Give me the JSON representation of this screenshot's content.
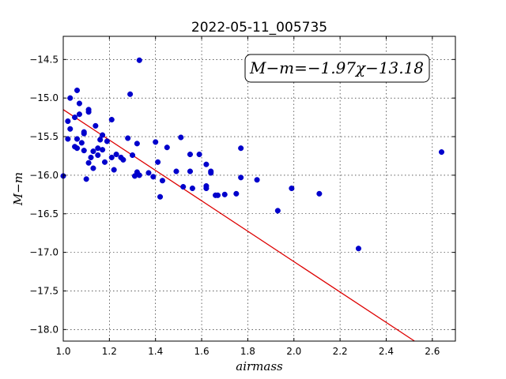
{
  "chart_data": {
    "type": "scatter",
    "title": "2022-05-11_005735",
    "xlabel": "airmass",
    "ylabel": "M−m",
    "annotation": "M−m=−1.97χ−13.18",
    "xlim": [
      1.0,
      2.7
    ],
    "ylim": [
      -18.15,
      -14.2
    ],
    "xticks": [
      1.0,
      1.2,
      1.4,
      1.6,
      1.8,
      2.0,
      2.2,
      2.4,
      2.6
    ],
    "xtick_labels": [
      "1.0",
      "1.2",
      "1.4",
      "1.6",
      "1.8",
      "2.0",
      "2.2",
      "2.4",
      "2.6"
    ],
    "yticks": [
      -14.5,
      -15.0,
      -15.5,
      -16.0,
      -16.5,
      -17.0,
      -17.5,
      -18.0
    ],
    "ytick_labels": [
      "−14.5",
      "−15.0",
      "−15.5",
      "−16.0",
      "−16.5",
      "−17.0",
      "−17.5",
      "−18.0"
    ],
    "grid": true,
    "points_color": "#0000cc",
    "fit_color": "#dd0000",
    "fit": {
      "slope": -1.97,
      "intercept": -13.18
    },
    "points": [
      [
        1.0,
        -16.01
      ],
      [
        1.02,
        -15.3
      ],
      [
        1.02,
        -15.53
      ],
      [
        1.03,
        -15.4
      ],
      [
        1.03,
        -15.0
      ],
      [
        1.05,
        -15.25
      ],
      [
        1.05,
        -15.63
      ],
      [
        1.06,
        -14.9
      ],
      [
        1.06,
        -15.53
      ],
      [
        1.06,
        -15.65
      ],
      [
        1.07,
        -15.07
      ],
      [
        1.07,
        -15.21
      ],
      [
        1.08,
        -15.58
      ],
      [
        1.09,
        -15.44
      ],
      [
        1.09,
        -15.46
      ],
      [
        1.09,
        -15.68
      ],
      [
        1.1,
        -16.05
      ],
      [
        1.11,
        -15.84
      ],
      [
        1.11,
        -15.15
      ],
      [
        1.11,
        -15.18
      ],
      [
        1.12,
        -15.77
      ],
      [
        1.13,
        -15.91
      ],
      [
        1.13,
        -15.69
      ],
      [
        1.14,
        -15.36
      ],
      [
        1.15,
        -15.65
      ],
      [
        1.15,
        -15.74
      ],
      [
        1.16,
        -15.54
      ],
      [
        1.17,
        -15.48
      ],
      [
        1.17,
        -15.67
      ],
      [
        1.18,
        -15.83
      ],
      [
        1.19,
        -15.56
      ],
      [
        1.21,
        -15.28
      ],
      [
        1.21,
        -15.77
      ],
      [
        1.22,
        -15.93
      ],
      [
        1.23,
        -15.73
      ],
      [
        1.25,
        -15.77
      ],
      [
        1.26,
        -15.8
      ],
      [
        1.28,
        -15.52
      ],
      [
        1.29,
        -14.95
      ],
      [
        1.3,
        -15.74
      ],
      [
        1.31,
        -16.01
      ],
      [
        1.32,
        -15.59
      ],
      [
        1.32,
        -15.96
      ],
      [
        1.33,
        -14.51
      ],
      [
        1.33,
        -16.0
      ],
      [
        1.37,
        -15.97
      ],
      [
        1.39,
        -16.02
      ],
      [
        1.4,
        -15.57
      ],
      [
        1.41,
        -15.83
      ],
      [
        1.42,
        -16.28
      ],
      [
        1.43,
        -16.07
      ],
      [
        1.45,
        -15.64
      ],
      [
        1.49,
        -15.95
      ],
      [
        1.51,
        -15.51
      ],
      [
        1.52,
        -16.15
      ],
      [
        1.55,
        -15.95
      ],
      [
        1.55,
        -15.73
      ],
      [
        1.56,
        -16.17
      ],
      [
        1.59,
        -15.73
      ],
      [
        1.62,
        -16.14
      ],
      [
        1.62,
        -16.17
      ],
      [
        1.62,
        -15.86
      ],
      [
        1.64,
        -15.95
      ],
      [
        1.64,
        -15.97
      ],
      [
        1.66,
        -16.26
      ],
      [
        1.67,
        -16.26
      ],
      [
        1.7,
        -16.25
      ],
      [
        1.75,
        -16.24
      ],
      [
        1.77,
        -16.03
      ],
      [
        1.77,
        -15.65
      ],
      [
        1.84,
        -16.06
      ],
      [
        1.93,
        -16.46
      ],
      [
        1.99,
        -16.17
      ],
      [
        2.11,
        -16.24
      ],
      [
        2.28,
        -16.95
      ],
      [
        2.64,
        -15.7
      ]
    ]
  }
}
